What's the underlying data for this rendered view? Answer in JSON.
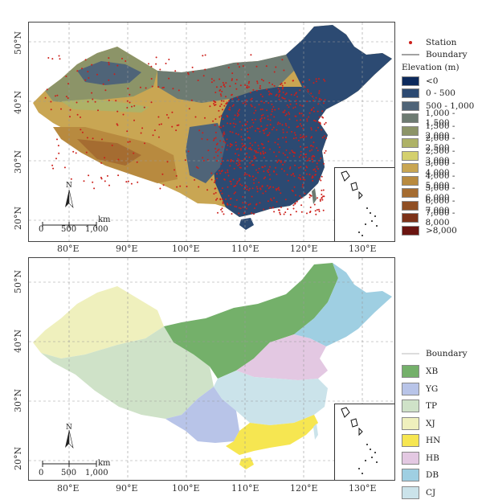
{
  "top_map": {
    "lat_labels": [
      "50°N",
      "40°N",
      "30°N",
      "20°N"
    ],
    "legend": {
      "station_label": "Station",
      "boundary_label": "Boundary",
      "elevation_title": "Elevation (m)",
      "elevation_classes": [
        {
          "label": "<0",
          "color": "#0d2a5c"
        },
        {
          "label": "0 - 500",
          "color": "#2c4a72"
        },
        {
          "label": "500 - 1,000",
          "color": "#4f6478"
        },
        {
          "label": "1,000 - 1,500",
          "color": "#6d7b72"
        },
        {
          "label": "1,500 - 2,000",
          "color": "#8c9468"
        },
        {
          "label": "2,000 - 2,500",
          "color": "#aeb267"
        },
        {
          "label": "2,500 - 3,000",
          "color": "#d4d06e"
        },
        {
          "label": "3,000 - 4,000",
          "color": "#c9a653"
        },
        {
          "label": "4,000 - 5,000",
          "color": "#b88a3f"
        },
        {
          "label": "5,000 - 6,000",
          "color": "#a56c31"
        },
        {
          "label": "6,000 - 7,000",
          "color": "#8f4f24"
        },
        {
          "label": "7,000 - 8,000",
          "color": "#7c3219"
        },
        {
          "label": ">8,000",
          "color": "#6a1410"
        }
      ],
      "station_color": "#cc1f1a"
    },
    "scale": {
      "unit": "km",
      "ticks": [
        "0",
        "500",
        "1,000"
      ]
    },
    "north": "N"
  },
  "bottom_map": {
    "lat_labels": [
      "50°N",
      "40°N",
      "30°N",
      "20°N"
    ],
    "legend": {
      "boundary_label": "Boundary",
      "regions": [
        {
          "label": "XB",
          "color": "#74b06a"
        },
        {
          "label": "YG",
          "color": "#b8c4e8"
        },
        {
          "label": "TP",
          "color": "#cfe2c8"
        },
        {
          "label": "XJ",
          "color": "#eff0bd"
        },
        {
          "label": "HN",
          "color": "#f6e651"
        },
        {
          "label": "HB",
          "color": "#e3c8e2"
        },
        {
          "label": "DB",
          "color": "#9fcfe2"
        },
        {
          "label": "CJ",
          "color": "#cbe3ea"
        }
      ]
    },
    "scale": {
      "unit": "km",
      "ticks": [
        "0",
        "500",
        "1,000"
      ]
    },
    "north": "N"
  },
  "lon_labels": [
    "80°E",
    "90°E",
    "100°E",
    "110°E",
    "120°E",
    "130°E"
  ]
}
